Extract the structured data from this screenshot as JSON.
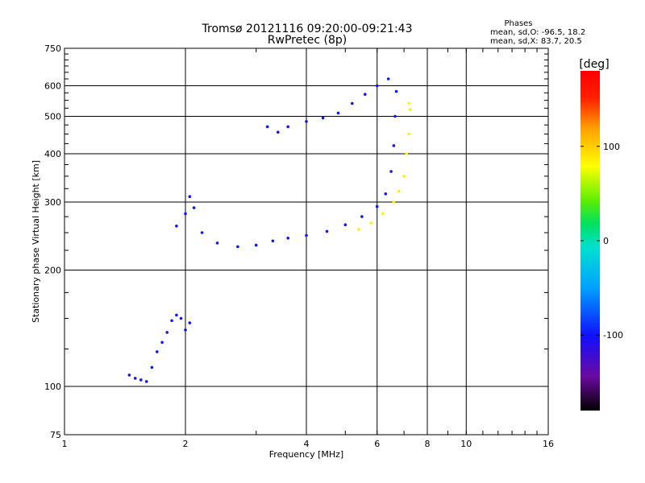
{
  "chart_data": {
    "type": "scatter",
    "title": "Tromsø 20121116 09:20:00-09:21:43",
    "subtitle": "RwPretec (8p)",
    "xlabel": "Frequency [MHz]",
    "ylabel": "Stationary phase Virtual Height [km]",
    "xscale": "log",
    "yscale": "log",
    "xlim": [
      1,
      16
    ],
    "ylim": [
      75,
      750
    ],
    "x_ticks": [
      1,
      2,
      4,
      6,
      8,
      10,
      16
    ],
    "y_ticks": [
      75,
      100,
      200,
      300,
      400,
      500,
      600,
      750
    ],
    "grid": true,
    "stats": {
      "heading": "Phases",
      "line1": "mean, sd,O: -96.5, 18.2",
      "line2": "mean, sd,X: 83.7, 20.5"
    },
    "colorbar": {
      "label": "[deg]",
      "range": [
        -180,
        180
      ],
      "ticks": [
        100,
        0,
        -100
      ]
    },
    "series": [
      {
        "mode": "O",
        "phase_deg": -100,
        "points": [
          [
            1.45,
            107
          ],
          [
            1.5,
            105
          ],
          [
            1.55,
            104
          ],
          [
            1.6,
            103
          ],
          [
            1.65,
            112
          ],
          [
            1.7,
            123
          ],
          [
            1.75,
            130
          ],
          [
            1.8,
            138
          ],
          [
            1.85,
            148
          ],
          [
            1.9,
            153
          ],
          [
            1.95,
            150
          ],
          [
            2.0,
            140
          ],
          [
            2.05,
            146
          ],
          [
            1.9,
            260
          ],
          [
            2.0,
            280
          ],
          [
            2.05,
            310
          ],
          [
            2.1,
            290
          ],
          [
            2.2,
            250
          ],
          [
            2.4,
            235
          ],
          [
            2.7,
            230
          ],
          [
            3.0,
            232
          ],
          [
            3.3,
            238
          ],
          [
            3.6,
            242
          ],
          [
            4.0,
            246
          ],
          [
            4.5,
            252
          ],
          [
            5.0,
            262
          ],
          [
            5.5,
            275
          ],
          [
            6.0,
            292
          ],
          [
            6.3,
            315
          ],
          [
            6.5,
            360
          ],
          [
            6.6,
            420
          ],
          [
            6.65,
            500
          ],
          [
            6.7,
            580
          ],
          [
            3.2,
            470
          ],
          [
            3.4,
            455
          ],
          [
            3.6,
            470
          ],
          [
            4.0,
            485
          ],
          [
            4.4,
            495
          ],
          [
            4.8,
            510
          ],
          [
            5.2,
            540
          ],
          [
            5.6,
            570
          ],
          [
            6.0,
            600
          ],
          [
            6.4,
            625
          ]
        ]
      },
      {
        "mode": "X",
        "phase_deg": 85,
        "points": [
          [
            5.4,
            255
          ],
          [
            5.8,
            265
          ],
          [
            6.2,
            280
          ],
          [
            6.6,
            300
          ],
          [
            6.8,
            320
          ],
          [
            7.0,
            350
          ],
          [
            7.1,
            400
          ],
          [
            7.2,
            450
          ],
          [
            7.25,
            520
          ],
          [
            7.2,
            540
          ]
        ]
      }
    ]
  }
}
